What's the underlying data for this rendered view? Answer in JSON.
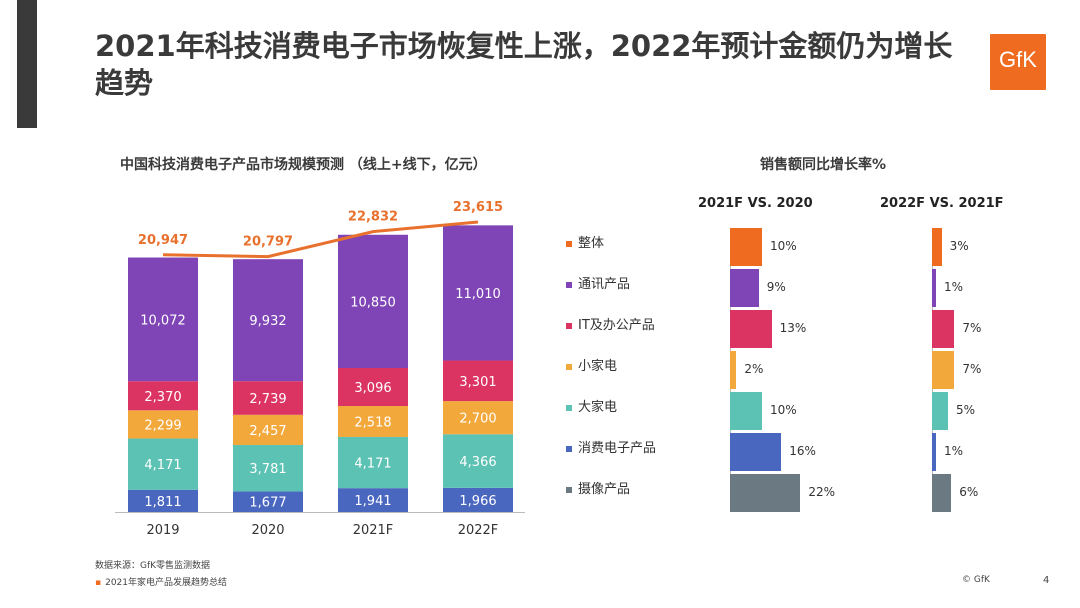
{
  "title": "2021年科技消费电子市场恢复性上涨，2022年预计金额仍为增长趋势",
  "logo": "GfK",
  "chart_data": [
    {
      "type": "bar",
      "stacked": true,
      "title": "中国科技消费电子产品市场规模预测 （线上+线下，亿元）",
      "categories": [
        "2019",
        "2020",
        "2021F",
        "2022F"
      ],
      "series": [
        {
          "name": "摄像产品",
          "color": "#6b7a82",
          "values": [
            0,
            0,
            0,
            0
          ]
        },
        {
          "name": "消费电子产品",
          "color": "#4a67c0",
          "values": [
            1811,
            1677,
            1941,
            1966
          ]
        },
        {
          "name": "大家电",
          "color": "#5cc2b4",
          "values": [
            4171,
            3781,
            4171,
            4366
          ]
        },
        {
          "name": "小家电",
          "color": "#f3a83b",
          "values": [
            2299,
            2457,
            2518,
            2700
          ]
        },
        {
          "name": "IT及办公产品",
          "color": "#dc3462",
          "values": [
            2370,
            2739,
            3096,
            3301
          ]
        },
        {
          "name": "通讯产品",
          "color": "#7f44b6",
          "values": [
            10072,
            9932,
            10850,
            11010
          ]
        }
      ],
      "total_line": {
        "name": "整体",
        "color": "#e8712e",
        "values": [
          20947,
          20797,
          22832,
          23615
        ],
        "labels": [
          "20,947",
          "20,797",
          "22,832",
          "23,615"
        ]
      },
      "value_labels": {
        "消费电子产品": [
          "1,811",
          "1,677",
          "1,941",
          "1,966"
        ],
        "大家电": [
          "4,171",
          "3,781",
          "4,171",
          "4,366"
        ],
        "小家电": [
          "2,299",
          "2,457",
          "2,518",
          "2,700"
        ],
        "IT及办公产品": [
          "2,370",
          "2,739",
          "3,096",
          "3,301"
        ],
        "通讯产品": [
          "10,072",
          "9,932",
          "10,850",
          "11,010"
        ]
      }
    },
    {
      "type": "bar",
      "orientation": "horizontal",
      "title": "销售额同比增长率%",
      "categories": [
        "整体",
        "通讯产品",
        "IT及办公产品",
        "小家电",
        "大家电",
        "消费电子产品",
        "摄像产品"
      ],
      "colors": [
        "#ef6b1f",
        "#7f44b6",
        "#dc3462",
        "#f3a83b",
        "#5cc2b4",
        "#4a67c0",
        "#6b7a82"
      ],
      "series": [
        {
          "name": "2021F VS. 2020",
          "values": [
            10,
            9,
            13,
            2,
            10,
            16,
            22
          ],
          "labels": [
            "10%",
            "9%",
            "13%",
            "2%",
            "10%",
            "16%",
            "22%"
          ]
        },
        {
          "name": "2022F VS. 2021F",
          "values": [
            3,
            1,
            7,
            7,
            5,
            1,
            6
          ],
          "labels": [
            "3%",
            "1%",
            "7%",
            "7%",
            "5%",
            "1%",
            "6%"
          ]
        }
      ]
    }
  ],
  "footer": {
    "source": "数据来源：GfK零售监测数据",
    "note": "2021年家电产品发展趋势总结",
    "copyright": "© GfK",
    "page": "4"
  }
}
